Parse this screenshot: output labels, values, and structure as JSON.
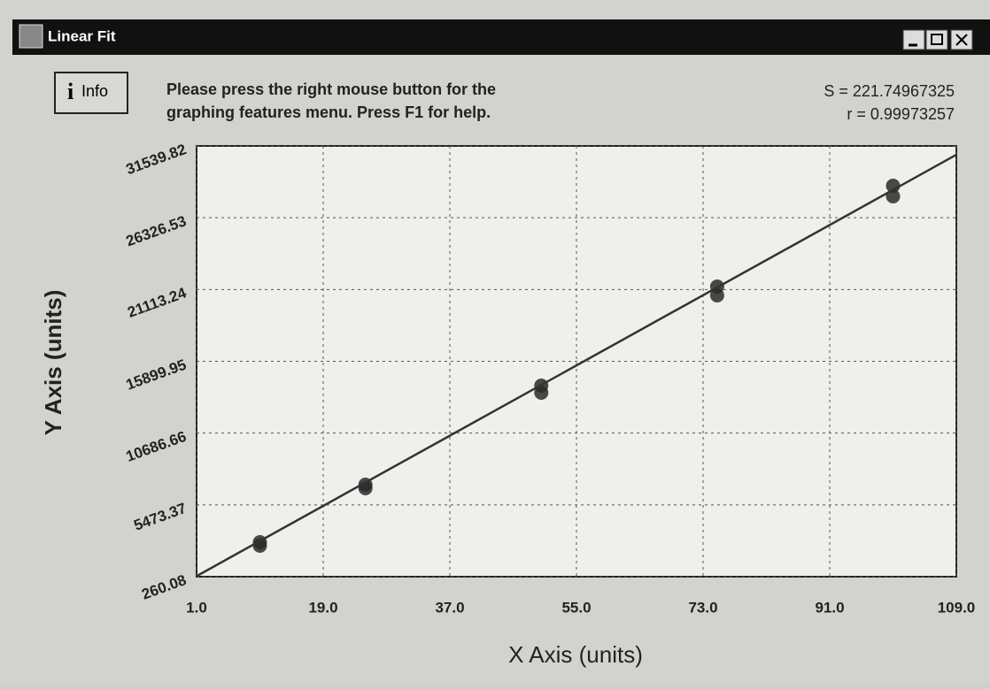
{
  "window": {
    "title": "Linear Fit"
  },
  "info_button": {
    "label": "Info"
  },
  "message": {
    "lines": [
      "Please press the right mouse button for the",
      "graphing features menu.  Press F1 for help."
    ]
  },
  "stats": {
    "S": "S = 221.74967325",
    "r": "r = 0.99973257"
  },
  "chart_data": {
    "type": "scatter",
    "xlabel": "X Axis (units)",
    "ylabel": "Y Axis (units)",
    "xlim": [
      1,
      109
    ],
    "xticks": [
      {
        "value": 1,
        "label": "1.0"
      },
      {
        "value": 19,
        "label": "19.0"
      },
      {
        "value": 37,
        "label": "37.0"
      },
      {
        "value": 55,
        "label": "55.0"
      },
      {
        "value": 73,
        "label": "73.0"
      },
      {
        "value": 91,
        "label": "91.0"
      },
      {
        "value": 109,
        "label": "109.0"
      }
    ],
    "ylim": [
      260.08,
      31539.82
    ],
    "yticks": [
      260.08,
      5473.37,
      10686.66,
      15899.95,
      21113.24,
      26326.53,
      31539.82
    ],
    "grid": true,
    "series": [
      {
        "type": "scatter",
        "color": "#2a2a2a",
        "x": [
          10,
          10,
          25,
          25,
          50,
          50,
          75,
          75,
          100,
          100
        ],
        "values": [
          2765,
          2508,
          6940,
          6683,
          14133,
          13619,
          21327,
          20685,
          28650,
          27879
        ]
      },
      {
        "type": "line",
        "color": "#333333",
        "x": [
          1,
          109
        ],
        "values": [
          300,
          30900
        ]
      }
    ]
  }
}
